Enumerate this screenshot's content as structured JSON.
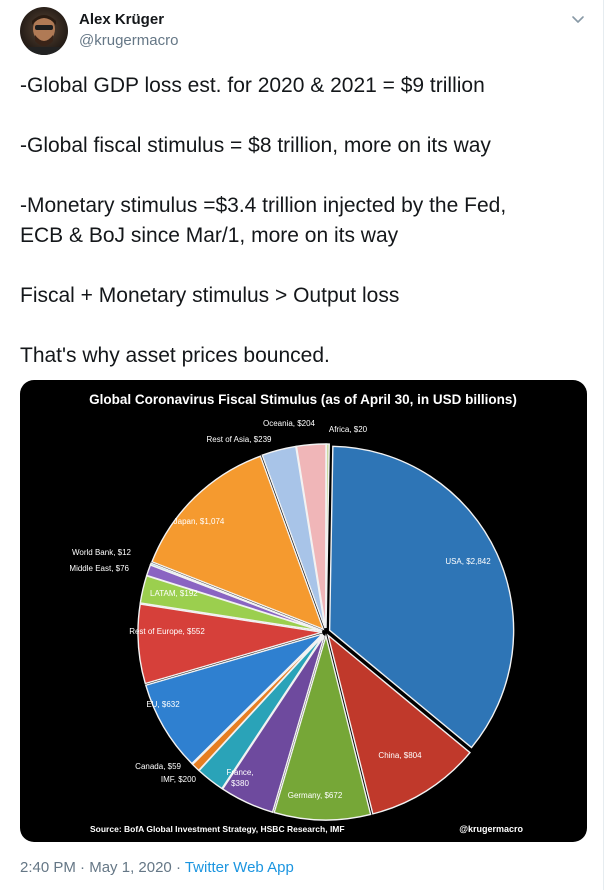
{
  "author": {
    "name": "Alex Krüger",
    "handle": "@krugermacro"
  },
  "tweet": {
    "lines": [
      "-Global GDP loss est. for 2020 & 2021 = $9 trillion",
      "-Global fiscal stimulus = $8 trillion, more on its way",
      "-Monetary stimulus =$3.4 trillion injected by the Fed,",
      "ECB & BoJ since Mar/1, more on its way",
      "Fiscal + Monetary stimulus > Output loss",
      "That's why asset prices bounced."
    ]
  },
  "meta": {
    "time": "2:40 PM",
    "separator1": " · ",
    "date": "May 1, 2020",
    "separator2": " · ",
    "app": "Twitter Web App"
  },
  "colors": {
    "accent": "#1b95e0",
    "secondary_text": "#657786"
  },
  "chart_data": {
    "type": "pie",
    "title": "Global Coronavirus Fiscal Stimulus (as of April 30, in USD billions)",
    "source": "Source: BofA Global Investment Strategy, HSBC Research, IMF",
    "credit": "@krugermacro",
    "slices": [
      {
        "name": "USA",
        "value": 2842,
        "label": "USA, $2,842",
        "color": "#2e75b6"
      },
      {
        "name": "China",
        "value": 804,
        "label": "China, $804",
        "color": "#c0392b"
      },
      {
        "name": "Germany",
        "value": 672,
        "label": "Germany, $672",
        "color": "#76a737"
      },
      {
        "name": "France",
        "value": 380,
        "label": "France, $380",
        "color": "#6e4a9e"
      },
      {
        "name": "IMF",
        "value": 200,
        "label": "IMF, $200",
        "color": "#2aa3b8"
      },
      {
        "name": "Canada",
        "value": 59,
        "label": "Canada, $59",
        "color": "#e67e22"
      },
      {
        "name": "EU",
        "value": 632,
        "label": "EU, $632",
        "color": "#2f80d0"
      },
      {
        "name": "Rest of Europe",
        "value": 552,
        "label": "Rest of Europe, $552",
        "color": "#d6403a"
      },
      {
        "name": "LATAM",
        "value": 192,
        "label": "LATAM, $192",
        "color": "#9bcf4e"
      },
      {
        "name": "Middle East",
        "value": 76,
        "label": "Middle East, $76",
        "color": "#8a64c2"
      },
      {
        "name": "World Bank",
        "value": 12,
        "label": "World Bank, $12",
        "color": "#4ec0d6"
      },
      {
        "name": "Japan",
        "value": 1074,
        "label": "Japan, $1,074",
        "color": "#f59a2f"
      },
      {
        "name": "Rest of Asia",
        "value": 239,
        "label": "Rest of Asia, $239",
        "color": "#a8c4e8"
      },
      {
        "name": "Oceania",
        "value": 204,
        "label": "Oceania, $204",
        "color": "#f0b6b8"
      },
      {
        "name": "Africa",
        "value": 20,
        "label": "Africa, $20",
        "color": "#c9d9a0"
      }
    ]
  }
}
